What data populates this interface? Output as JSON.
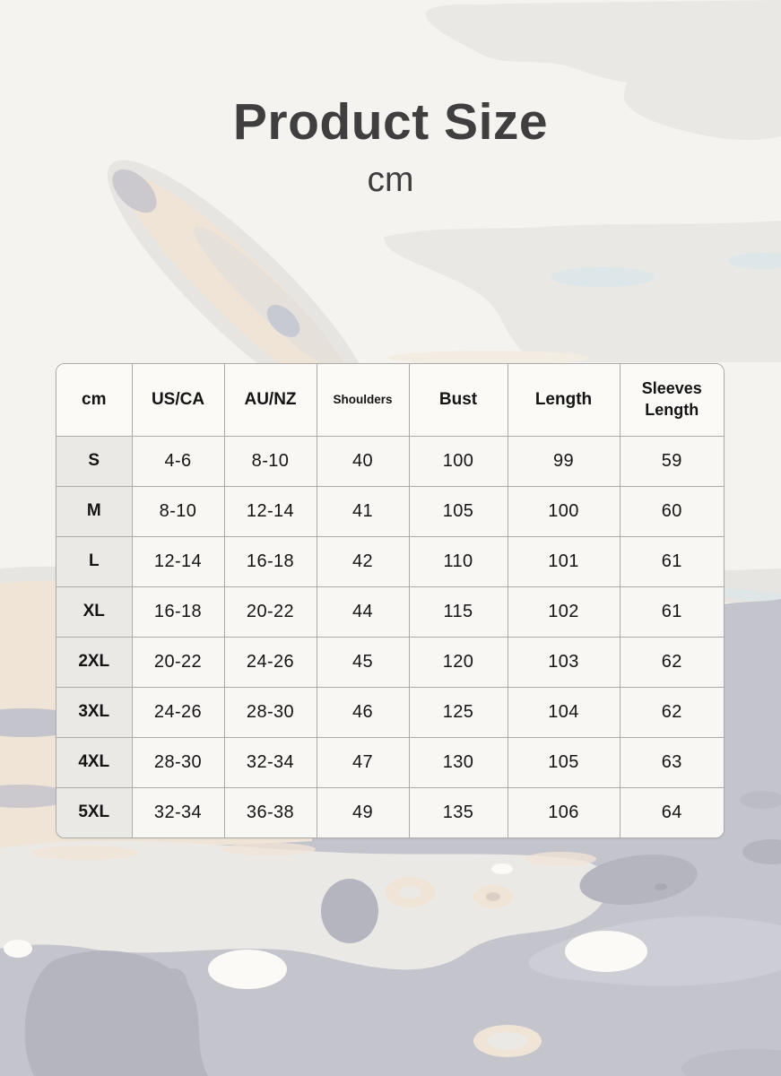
{
  "header": {
    "title": "Product Size",
    "unit": "cm"
  },
  "chart_data": {
    "type": "table",
    "title": "Product Size",
    "unit": "cm",
    "columns": [
      "cm",
      "US/CA",
      "AU/NZ",
      "Shoulders",
      "Bust",
      "Length",
      "Sleeves Length"
    ],
    "rows": [
      [
        "S",
        "4-6",
        "8-10",
        "40",
        "100",
        "99",
        "59"
      ],
      [
        "M",
        "8-10",
        "12-14",
        "41",
        "105",
        "100",
        "60"
      ],
      [
        "L",
        "12-14",
        "16-18",
        "42",
        "110",
        "101",
        "61"
      ],
      [
        "XL",
        "16-18",
        "20-22",
        "44",
        "115",
        "102",
        "61"
      ],
      [
        "2XL",
        "20-22",
        "24-26",
        "45",
        "120",
        "103",
        "62"
      ],
      [
        "3XL",
        "24-26",
        "28-30",
        "46",
        "125",
        "104",
        "62"
      ],
      [
        "4XL",
        "28-30",
        "32-34",
        "47",
        "130",
        "105",
        "63"
      ],
      [
        "5XL",
        "32-34",
        "36-38",
        "49",
        "135",
        "106",
        "64"
      ]
    ]
  },
  "colors": {
    "page_bg": "#f5f3ef",
    "title_text": "#3f3f3f",
    "table_border": "#ababab",
    "table_text": "#141414",
    "header_cell_bg": "#fbfaf7",
    "size_column_bg": "#eae9e5",
    "data_cell_bg": "#f8f7f4",
    "watercolor": {
      "cloud": "#e9e8e4",
      "beige": "#f0e4d7",
      "beige_soft": "#f3ece2",
      "cream": "#ebe9e5",
      "white": "#fbfaf7",
      "blue_gray": "#c4c4cc",
      "blue_gray_dark": "#b5b5bf",
      "pale_blue": "#dde6e9",
      "gray_light": "#e6e5e1"
    }
  }
}
